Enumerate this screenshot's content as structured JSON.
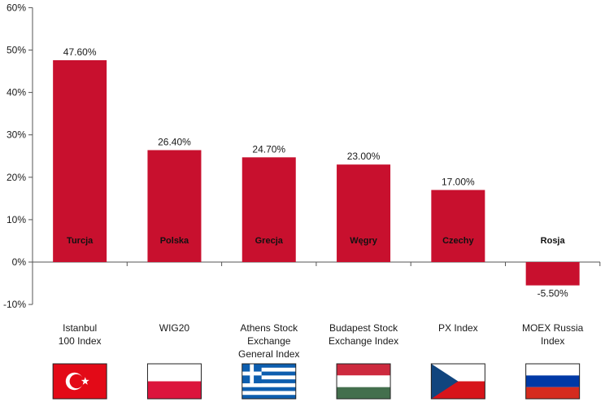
{
  "colors": {
    "bar": "#C8102E",
    "axis": "#555555",
    "text": "#1a1a1a"
  },
  "chart_data": {
    "type": "bar",
    "categories": [
      [
        "Istanbul",
        "100 Index"
      ],
      [
        "WIG20"
      ],
      [
        "Athens Stock",
        "Exchange",
        "General Index"
      ],
      [
        "Budapest Stock",
        "Exchange Index"
      ],
      [
        "PX Index"
      ],
      [
        "MOEX Russia",
        "Index"
      ]
    ],
    "countries": [
      "Turcja",
      "Polska",
      "Grecja",
      "Węgry",
      "Czechy",
      "Rosja"
    ],
    "flags": [
      "turkey-flag",
      "poland-flag",
      "greece-flag",
      "hungary-flag",
      "czech-flag",
      "russia-flag"
    ],
    "values": [
      47.6,
      26.4,
      24.7,
      23.0,
      17.0,
      -5.5
    ],
    "value_labels": [
      "47.60%",
      "26.40%",
      "24.70%",
      "23.00%",
      "17.00%",
      "-5.50%"
    ],
    "yticks": [
      60,
      50,
      40,
      30,
      20,
      10,
      0,
      -10
    ],
    "ytick_labels": [
      "60%",
      "50%",
      "40%",
      "30%",
      "20%",
      "10%",
      "0%",
      "-10%"
    ],
    "ylim": [
      -10,
      60
    ],
    "grid": false,
    "legend": "none"
  }
}
